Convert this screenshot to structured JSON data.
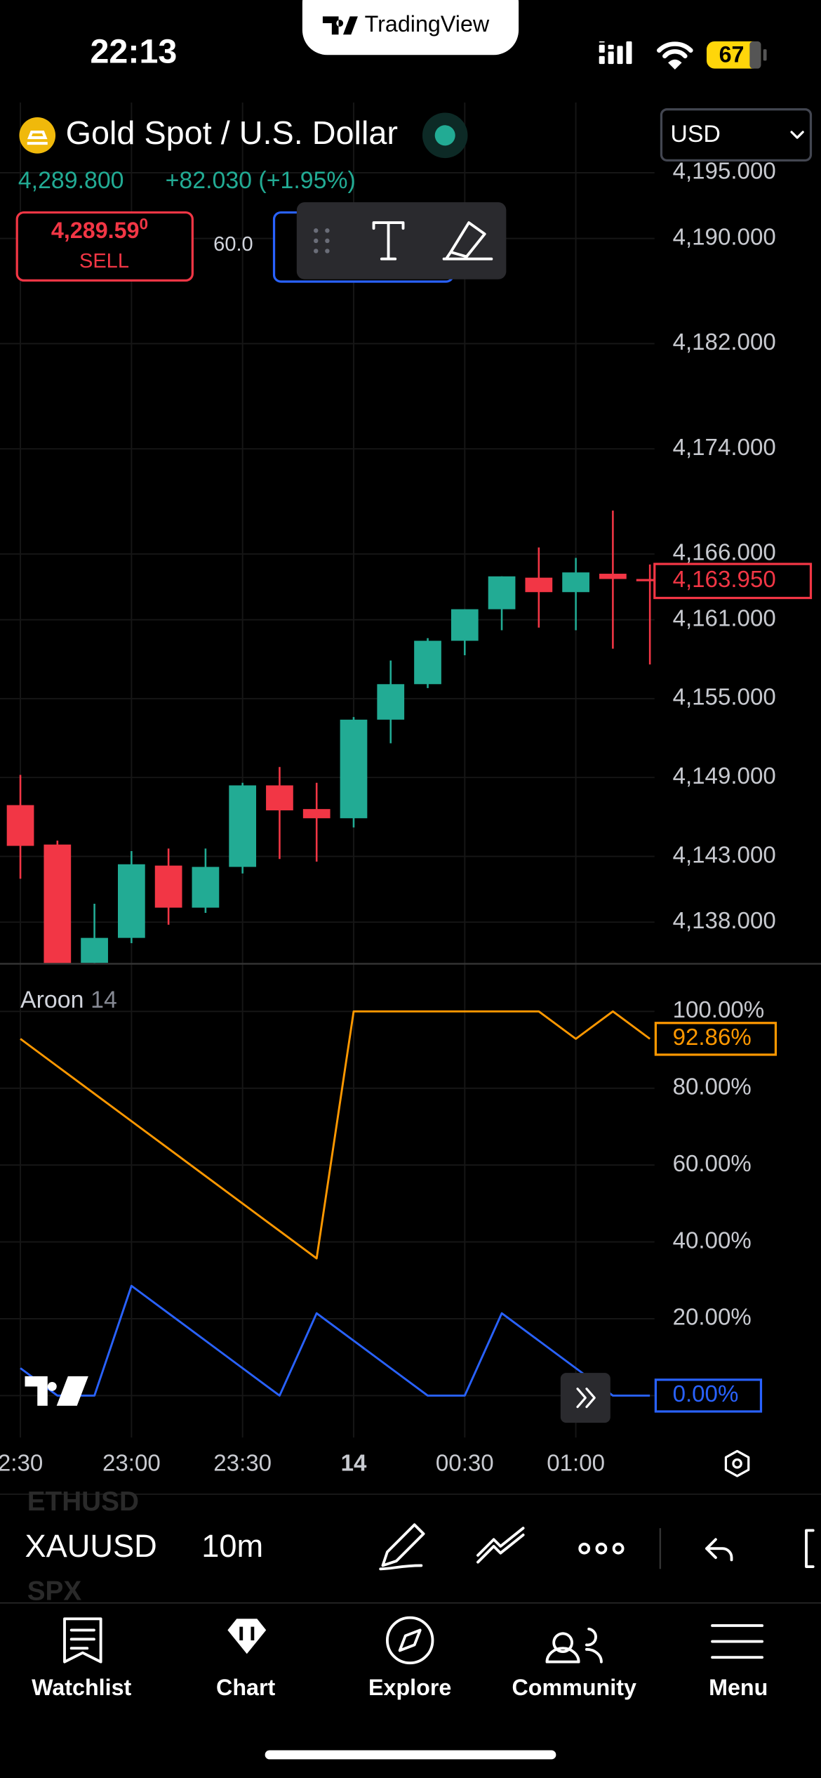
{
  "status_bar": {
    "time": "22:13",
    "battery": "67"
  },
  "banner": "TradingView",
  "symbol": {
    "name": "Gold Spot / U.S. Dollar",
    "currency": "USD",
    "price": "4,289.800",
    "change": "+82.030 (+1.95%)",
    "sell_price": "4,289.59",
    "sell_price_small": "0",
    "sell_label": "SELL",
    "spread": "60.0"
  },
  "chart_data": [
    {
      "type": "candlestick",
      "categories": [
        "2:30",
        null,
        null,
        "23:00",
        null,
        null,
        "23:30",
        null,
        null,
        "14",
        null,
        null,
        "00:30",
        null,
        null,
        "01:00",
        null,
        null
      ],
      "open": [
        4146.9,
        4143.9,
        4134.9,
        4136.8,
        4142.3,
        4139.1,
        4142.2,
        4148.4,
        4146.6,
        4145.9,
        4153.4,
        4156.1,
        4159.4,
        4161.8,
        4164.2,
        4163.1,
        4164.5,
        4164.1
      ],
      "high": [
        4149.2,
        4144.2,
        4139.4,
        4143.4,
        4143.6,
        4143.6,
        4148.6,
        4149.8,
        4148.6,
        4153.6,
        4157.9,
        4159.6,
        4161.8,
        4164.3,
        4166.5,
        4165.7,
        4169.3,
        4165.2
      ],
      "low": [
        4141.3,
        4134.0,
        4134.5,
        4136.4,
        4137.8,
        4138.7,
        4141.7,
        4142.8,
        4142.6,
        4145.2,
        4151.6,
        4155.8,
        4158.3,
        4160.2,
        4160.4,
        4160.2,
        4158.8,
        4157.6
      ],
      "close": [
        4143.8,
        4134.5,
        4136.8,
        4142.4,
        4139.1,
        4142.2,
        4148.4,
        4146.5,
        4145.9,
        4153.4,
        4156.1,
        4159.4,
        4161.8,
        4164.3,
        4163.1,
        4164.6,
        4164.1,
        4163.95
      ],
      "last_label": "4,163.950",
      "up_color": "#22ab94",
      "down_color": "#f23645",
      "ylim": [
        4134.83,
        4200.34
      ],
      "yticks": [
        {
          "value": 4195,
          "label": "4,195.000"
        },
        {
          "value": 4190,
          "label": "4,190.000"
        },
        {
          "value": 4182,
          "label": "4,182.000"
        },
        {
          "value": 4174,
          "label": "4,174.000"
        },
        {
          "value": 4166,
          "label": "4,166.000"
        },
        {
          "value": 4161,
          "label": "4,161.000"
        },
        {
          "value": 4155,
          "label": "4,155.000"
        },
        {
          "value": 4149,
          "label": "4,149.000"
        },
        {
          "value": 4143,
          "label": "4,143.000"
        },
        {
          "value": 4138,
          "label": "4,138.000"
        }
      ],
      "grid": true
    },
    {
      "type": "line",
      "title": "Aroon",
      "length": 14,
      "series": [
        {
          "color": "#ff9800",
          "values": [
            92.86,
            85.71,
            78.57,
            71.43,
            64.29,
            57.14,
            50,
            42.86,
            35.71,
            100,
            100,
            100,
            100,
            100,
            100,
            92.86,
            100,
            92.86
          ],
          "last_label": "92.86%"
        },
        {
          "color": "#2962ff",
          "values": [
            7.14,
            0,
            0,
            28.57,
            21.43,
            14.29,
            7.14,
            0,
            21.43,
            14.29,
            7.14,
            0,
            0,
            21.43,
            14.29,
            7.14,
            0,
            0
          ],
          "last_label": "0.00%"
        }
      ],
      "ylim": [
        -10.9,
        111.8
      ],
      "yticks": [
        {
          "value": 100,
          "label": "100.00%"
        },
        {
          "value": 80,
          "label": "80.00%"
        },
        {
          "value": 60,
          "label": "60.00%"
        },
        {
          "value": 40,
          "label": "40.00%"
        },
        {
          "value": 20,
          "label": "20.00%"
        },
        {
          "value": 0,
          "label": "0.00%"
        }
      ],
      "grid": true
    }
  ],
  "toolbar": {
    "symbols": [
      "ETHUSD",
      "XAUUSD",
      "SPX"
    ],
    "interval": "10m"
  },
  "tab_bar": {
    "tabs": [
      "Watchlist",
      "Chart",
      "Explore",
      "Community",
      "Menu"
    ]
  }
}
